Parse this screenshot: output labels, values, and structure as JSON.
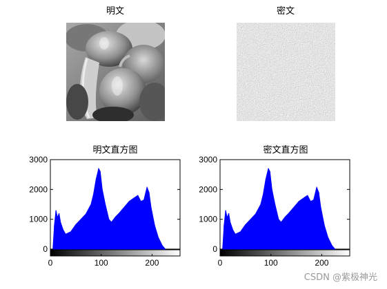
{
  "titles": {
    "plain_image": "明文",
    "cipher_image": "密文",
    "plain_hist": "明文直方图",
    "cipher_hist": "密文直方图"
  },
  "images": {
    "plain_image_icon": "grayscale-peppers-photo",
    "cipher_image_icon": "grayscale-noise-image"
  },
  "watermark": "CSDN @紫极神光",
  "colors": {
    "bar": "#0000ff",
    "axis": "#000000"
  },
  "chart_data": [
    {
      "type": "bar",
      "title": "明文直方图",
      "xlim": [
        0,
        255
      ],
      "ylim": [
        0,
        3000
      ],
      "xticks": [
        0,
        100,
        200
      ],
      "yticks": [
        0,
        1000,
        2000,
        3000
      ],
      "colorbar": "grayscale 0-255",
      "bins": [
        {
          "x": 5,
          "y": 0
        },
        {
          "x": 8,
          "y": 800
        },
        {
          "x": 11,
          "y": 1300
        },
        {
          "x": 14,
          "y": 1050
        },
        {
          "x": 17,
          "y": 1200
        },
        {
          "x": 20,
          "y": 900
        },
        {
          "x": 25,
          "y": 650
        },
        {
          "x": 30,
          "y": 500
        },
        {
          "x": 40,
          "y": 580
        },
        {
          "x": 50,
          "y": 820
        },
        {
          "x": 60,
          "y": 1000
        },
        {
          "x": 70,
          "y": 1180
        },
        {
          "x": 80,
          "y": 1500
        },
        {
          "x": 85,
          "y": 1850
        },
        {
          "x": 90,
          "y": 2350
        },
        {
          "x": 95,
          "y": 2700
        },
        {
          "x": 98,
          "y": 2600
        },
        {
          "x": 102,
          "y": 2000
        },
        {
          "x": 108,
          "y": 1500
        },
        {
          "x": 115,
          "y": 1000
        },
        {
          "x": 120,
          "y": 900
        },
        {
          "x": 128,
          "y": 1080
        },
        {
          "x": 135,
          "y": 1200
        },
        {
          "x": 145,
          "y": 1400
        },
        {
          "x": 155,
          "y": 1600
        },
        {
          "x": 165,
          "y": 1720
        },
        {
          "x": 172,
          "y": 1800
        },
        {
          "x": 178,
          "y": 1600
        },
        {
          "x": 184,
          "y": 1650
        },
        {
          "x": 190,
          "y": 2070
        },
        {
          "x": 194,
          "y": 1900
        },
        {
          "x": 198,
          "y": 1400
        },
        {
          "x": 205,
          "y": 800
        },
        {
          "x": 212,
          "y": 400
        },
        {
          "x": 220,
          "y": 120
        },
        {
          "x": 226,
          "y": 0
        }
      ]
    },
    {
      "type": "bar",
      "title": "密文直方图",
      "xlim": [
        0,
        255
      ],
      "ylim": [
        0,
        3000
      ],
      "xticks": [
        0,
        100,
        200
      ],
      "yticks": [
        0,
        1000,
        2000,
        3000
      ],
      "colorbar": "grayscale 0-255",
      "bins": [
        {
          "x": 5,
          "y": 0
        },
        {
          "x": 8,
          "y": 800
        },
        {
          "x": 11,
          "y": 1300
        },
        {
          "x": 14,
          "y": 1050
        },
        {
          "x": 17,
          "y": 1200
        },
        {
          "x": 20,
          "y": 900
        },
        {
          "x": 25,
          "y": 650
        },
        {
          "x": 30,
          "y": 500
        },
        {
          "x": 40,
          "y": 580
        },
        {
          "x": 50,
          "y": 820
        },
        {
          "x": 60,
          "y": 1000
        },
        {
          "x": 70,
          "y": 1180
        },
        {
          "x": 80,
          "y": 1500
        },
        {
          "x": 85,
          "y": 1850
        },
        {
          "x": 90,
          "y": 2350
        },
        {
          "x": 95,
          "y": 2700
        },
        {
          "x": 98,
          "y": 2600
        },
        {
          "x": 102,
          "y": 2000
        },
        {
          "x": 108,
          "y": 1500
        },
        {
          "x": 115,
          "y": 1000
        },
        {
          "x": 120,
          "y": 900
        },
        {
          "x": 128,
          "y": 1080
        },
        {
          "x": 135,
          "y": 1200
        },
        {
          "x": 145,
          "y": 1400
        },
        {
          "x": 155,
          "y": 1600
        },
        {
          "x": 165,
          "y": 1720
        },
        {
          "x": 172,
          "y": 1800
        },
        {
          "x": 178,
          "y": 1600
        },
        {
          "x": 184,
          "y": 1650
        },
        {
          "x": 190,
          "y": 2070
        },
        {
          "x": 194,
          "y": 1900
        },
        {
          "x": 198,
          "y": 1400
        },
        {
          "x": 205,
          "y": 800
        },
        {
          "x": 212,
          "y": 400
        },
        {
          "x": 220,
          "y": 120
        },
        {
          "x": 226,
          "y": 0
        }
      ]
    }
  ]
}
